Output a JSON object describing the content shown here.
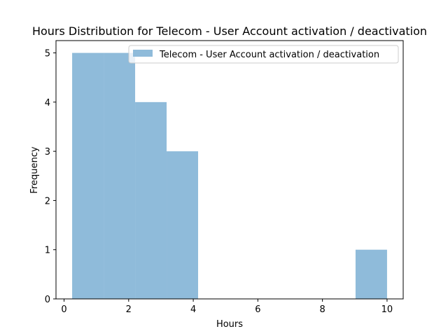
{
  "chart_data": {
    "type": "bar",
    "title": "Hours Distribution for Telecom - User Account activation / deactivation",
    "xlabel": "Hours",
    "ylabel": "Frequency",
    "xlim": [
      -0.25,
      10.5
    ],
    "ylim": [
      0,
      5.25
    ],
    "xticks": [
      0,
      2,
      4,
      6,
      8,
      10
    ],
    "yticks": [
      0,
      1,
      2,
      3,
      4,
      5
    ],
    "bins": [
      {
        "start": 0.25,
        "end": 1.225,
        "count": 5
      },
      {
        "start": 1.225,
        "end": 2.2,
        "count": 5
      },
      {
        "start": 2.2,
        "end": 3.175,
        "count": 4
      },
      {
        "start": 3.175,
        "end": 4.15,
        "count": 3
      },
      {
        "start": 4.15,
        "end": 5.125,
        "count": 0
      },
      {
        "start": 5.125,
        "end": 6.1,
        "count": 0
      },
      {
        "start": 6.1,
        "end": 7.075,
        "count": 0
      },
      {
        "start": 7.075,
        "end": 8.05,
        "count": 0
      },
      {
        "start": 8.05,
        "end": 9.025,
        "count": 0
      },
      {
        "start": 9.025,
        "end": 10.0,
        "count": 1
      }
    ],
    "series": [
      {
        "name": "Telecom - User Account activation / deactivation",
        "color": "#8fbbda"
      }
    ],
    "legend_position": "top-right",
    "grid": false
  }
}
